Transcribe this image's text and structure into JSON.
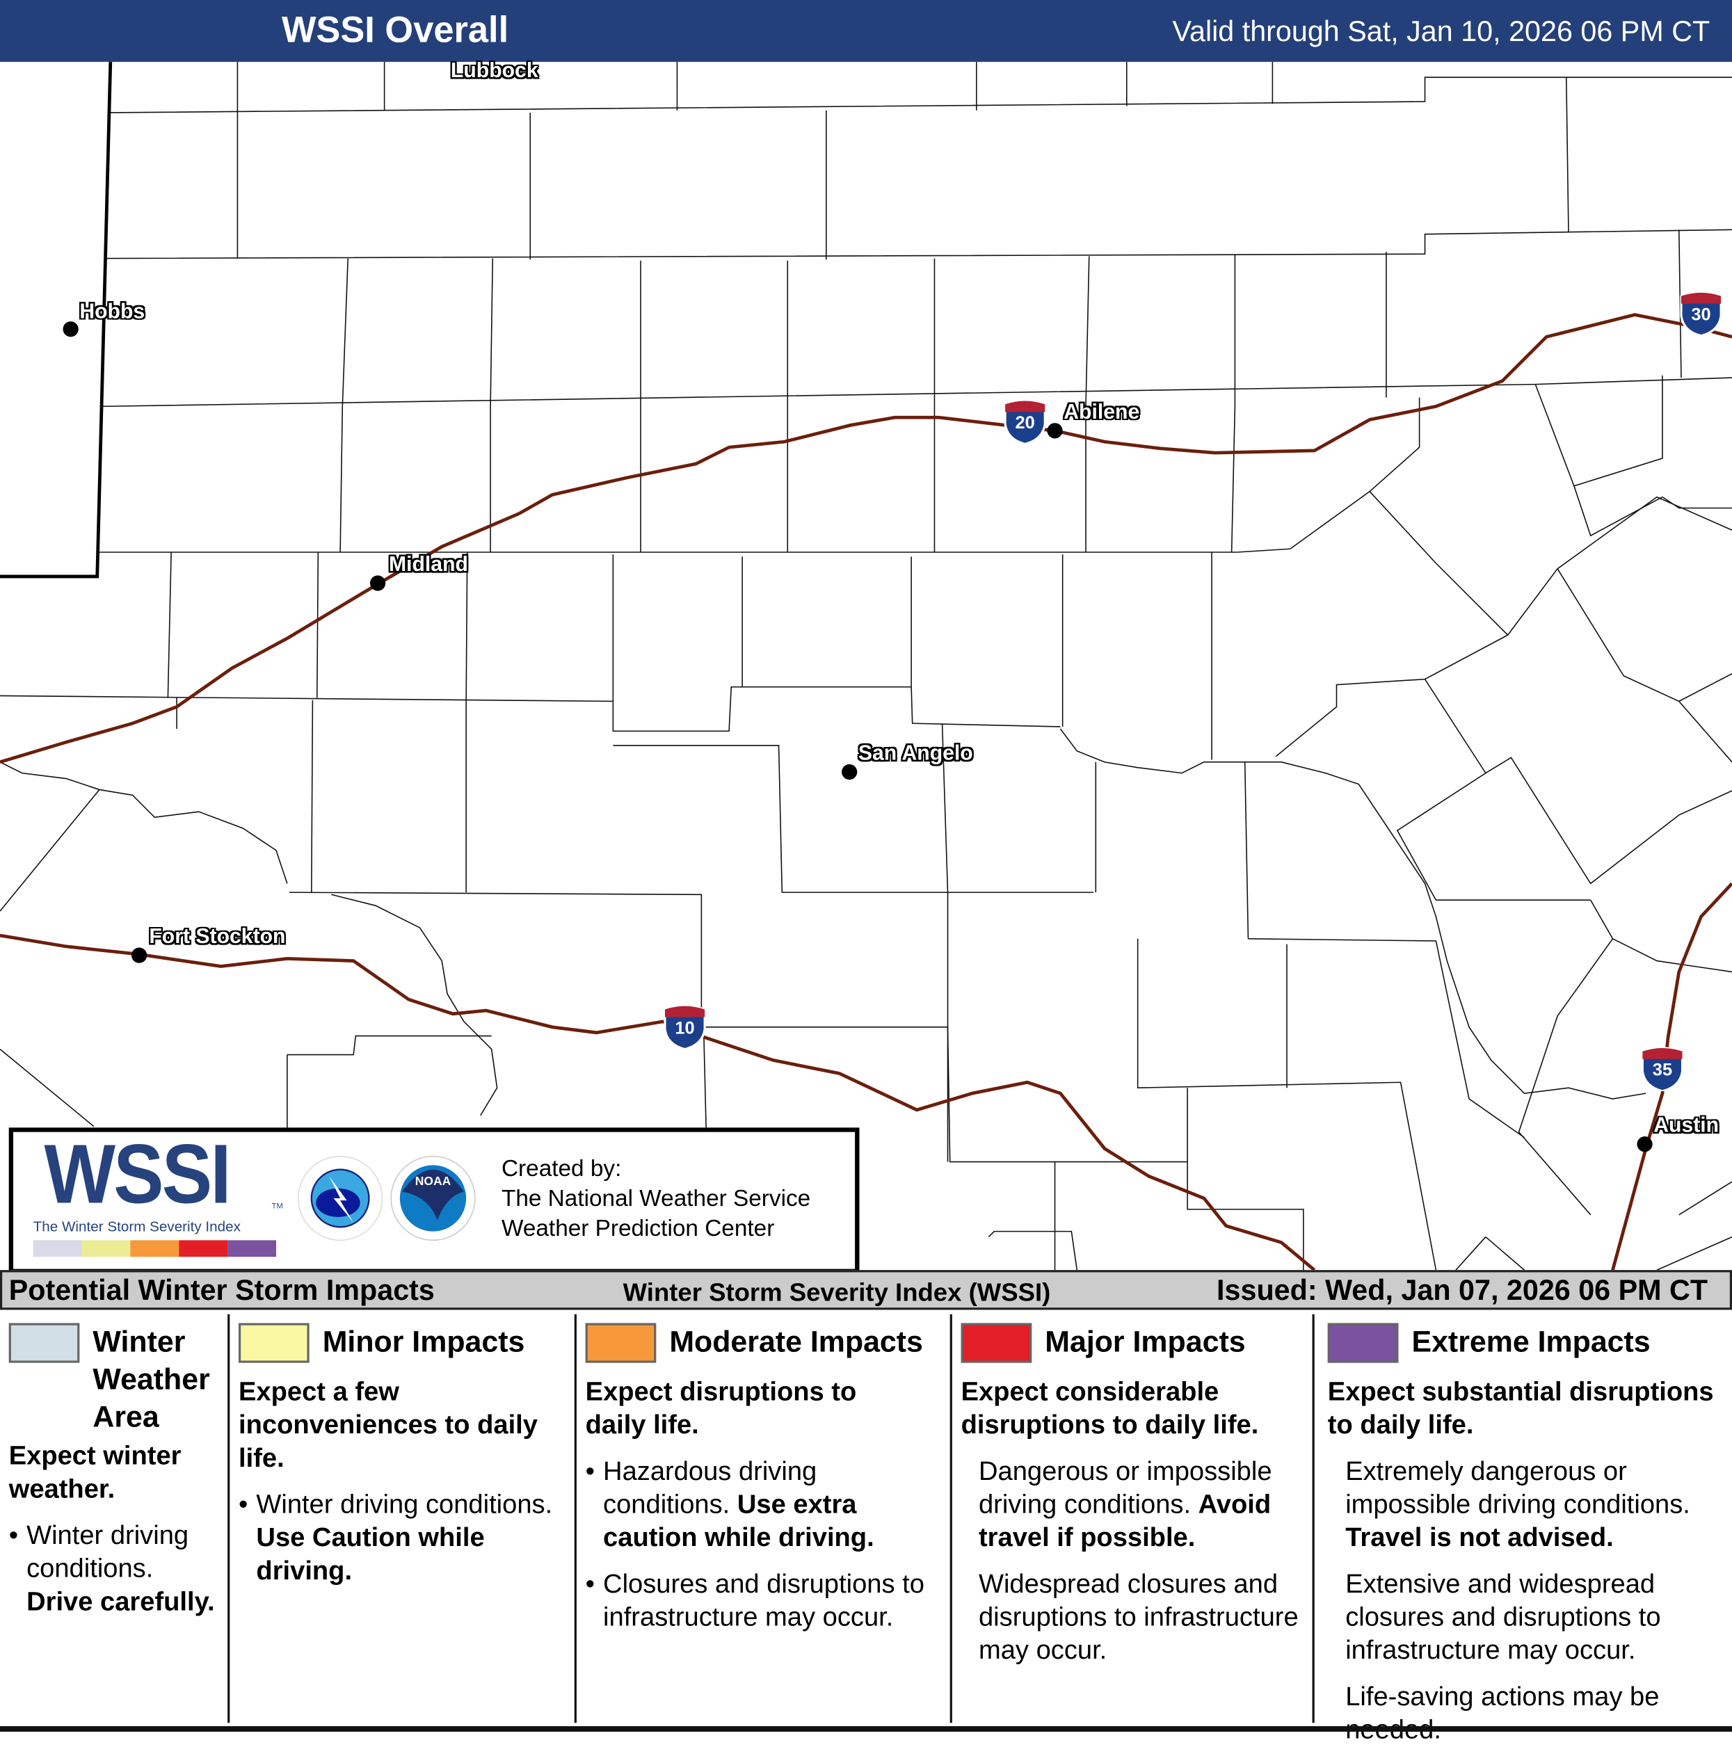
{
  "header": {
    "title": "WSSI Overall",
    "valid": "Valid through Sat, Jan 10, 2026 06 PM CT",
    "bg": "#24407a"
  },
  "map": {
    "cities": [
      {
        "name": "Lubbock",
        "dot": false
      },
      {
        "name": "Hobbs",
        "dot": true
      },
      {
        "name": "Midland",
        "dot": true
      },
      {
        "name": "Abilene",
        "dot": true
      },
      {
        "name": "San Angelo",
        "dot": true
      },
      {
        "name": "Fort Stockton",
        "dot": true
      },
      {
        "name": "Austin",
        "dot": true
      }
    ],
    "interstates": [
      "20",
      "10",
      "30",
      "35"
    ],
    "road_color": "#6b1f0c"
  },
  "logo": {
    "wssi": "WSSI",
    "tm": "TM",
    "subtitle": "The Winter Storm Severity Index",
    "nws": "NATIONAL WEATHER SERVICE",
    "noaa": "NOAA",
    "created_by": "Created by:",
    "org1": "The National Weather Service",
    "org2": "Weather Prediction Center",
    "bar_colors": [
      "#d9d9e8",
      "#ecec94",
      "#f7993a",
      "#e21f26",
      "#7b52a0"
    ]
  },
  "legend_bar": {
    "left": "Potential Winter Storm Impacts",
    "center": "Winter Storm Severity Index (WSSI)",
    "right": "Issued: Wed, Jan 07, 2026 06 PM CT"
  },
  "categories": [
    {
      "label": "Winter Weather Area",
      "color": "#d3dfe6",
      "head": "Expect winter weather.",
      "b1a": "Winter driving conditions.",
      "b1b": "Drive carefully."
    },
    {
      "label": "Minor Impacts",
      "color": "#fbf8a3",
      "head": "Expect a few inconveniences to daily life.",
      "b1a": "Winter driving conditions.",
      "b1b": "Use Caution while driving."
    },
    {
      "label": "Moderate Impacts",
      "color": "#f7993a",
      "head": "Expect disruptions to daily life.",
      "b1a": "Hazardous driving conditions.",
      "b1b": "Use extra caution while driving.",
      "b2": "Closures and disruptions to infrastructure may occur."
    },
    {
      "label": "Major Impacts",
      "color": "#e21f26",
      "head": "Expect considerable disruptions to daily life.",
      "b1a": "Dangerous or impossible driving conditions.",
      "b1b": "Avoid travel if possible.",
      "b2": "Widespread closures and disruptions to infrastructure may occur."
    },
    {
      "label": "Extreme Impacts",
      "color": "#7b52a0",
      "head": "Expect substantial disruptions to daily life.",
      "b1a": "Extremely dangerous or impossible driving conditions.",
      "b1b": "Travel is not advised.",
      "b2": "Extensive and widespread closures and disruptions to infrastructure may occur.",
      "b3": "Life-saving actions may be needed."
    }
  ]
}
